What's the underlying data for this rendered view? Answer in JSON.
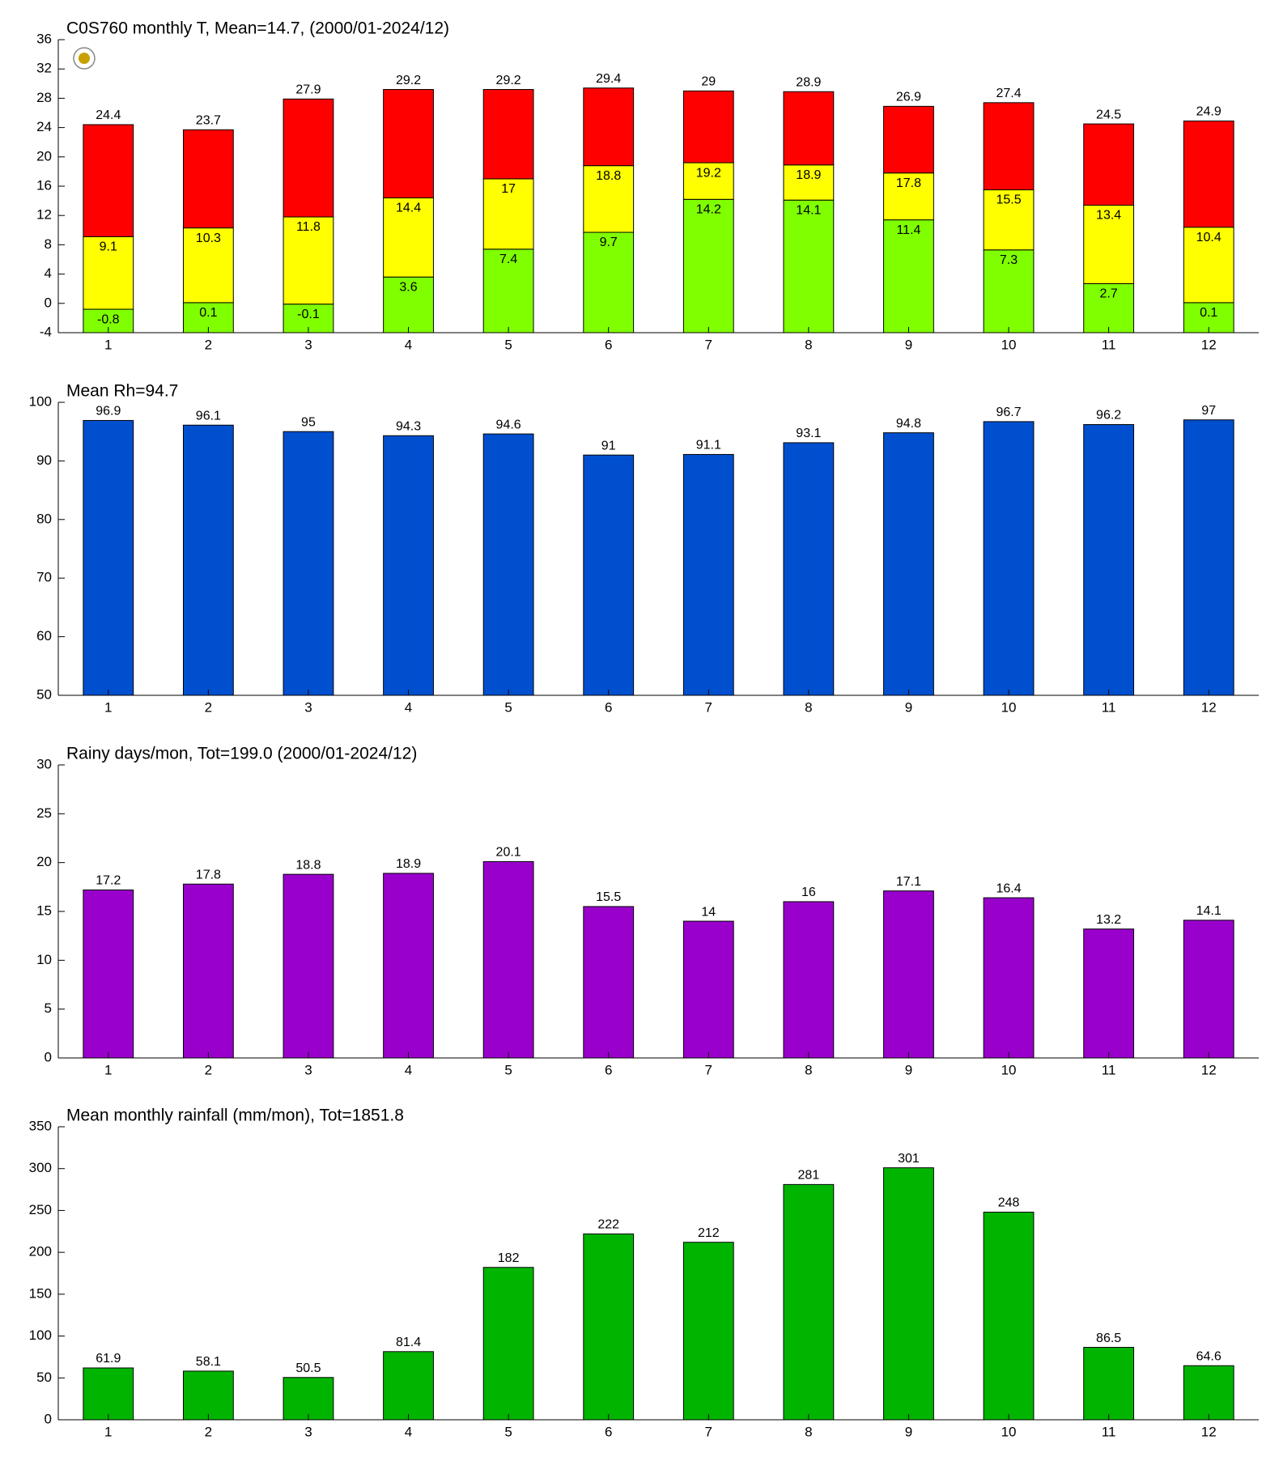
{
  "chart_data": [
    {
      "type": "bar",
      "title": "C0S760 monthly T, Mean=14.7, (2000/01-2024/12)",
      "categories": [
        "1",
        "2",
        "3",
        "4",
        "5",
        "6",
        "7",
        "8",
        "9",
        "10",
        "11",
        "12"
      ],
      "series": [
        {
          "color": "#80ff00",
          "values": [
            -0.8,
            0.1,
            -0.1,
            3.6,
            7.4,
            9.7,
            14.2,
            14.1,
            11.4,
            7.3,
            2.7,
            0.1
          ]
        },
        {
          "color": "#ffff00",
          "values": [
            9.1,
            10.3,
            11.8,
            14.4,
            17,
            18.8,
            19.2,
            18.9,
            17.8,
            15.5,
            13.4,
            10.4
          ]
        },
        {
          "color": "#ff0000",
          "values": [
            24.4,
            23.7,
            27.9,
            29.2,
            29.2,
            29.4,
            29,
            28.9,
            26.9,
            27.4,
            24.5,
            24.9
          ]
        }
      ],
      "ylim": [
        -4,
        36
      ],
      "yticks": [
        -4,
        0,
        4,
        8,
        12,
        16,
        20,
        24,
        28,
        32,
        36
      ]
    },
    {
      "type": "bar",
      "title": "Mean Rh=94.7",
      "categories": [
        "1",
        "2",
        "3",
        "4",
        "5",
        "6",
        "7",
        "8",
        "9",
        "10",
        "11",
        "12"
      ],
      "values": [
        96.9,
        96.1,
        95,
        94.3,
        94.6,
        91,
        91.1,
        93.1,
        94.8,
        96.7,
        96.2,
        97
      ],
      "color": "#004fcf",
      "ylim": [
        50,
        100
      ],
      "yticks": [
        50,
        60,
        70,
        80,
        90,
        100
      ]
    },
    {
      "type": "bar",
      "title": "Rainy days/mon, Tot=199.0 (2000/01-2024/12)",
      "categories": [
        "1",
        "2",
        "3",
        "4",
        "5",
        "6",
        "7",
        "8",
        "9",
        "10",
        "11",
        "12"
      ],
      "values": [
        17.2,
        17.8,
        18.8,
        18.9,
        20.1,
        15.5,
        14,
        16,
        17.1,
        16.4,
        13.2,
        14.1
      ],
      "color": "#9900cc",
      "ylim": [
        0,
        30
      ],
      "yticks": [
        0,
        5,
        10,
        15,
        20,
        25,
        30
      ]
    },
    {
      "type": "bar",
      "title": "Mean monthly rainfall (mm/mon), Tot=1851.8",
      "categories": [
        "1",
        "2",
        "3",
        "4",
        "5",
        "6",
        "7",
        "8",
        "9",
        "10",
        "11",
        "12"
      ],
      "values": [
        61.9,
        58.1,
        50.5,
        81.4,
        182,
        222,
        212,
        281,
        301,
        248,
        86.5,
        64.6
      ],
      "color": "#00b400",
      "ylim": [
        0,
        350
      ],
      "yticks": [
        0,
        50,
        100,
        150,
        200,
        250,
        300,
        350
      ]
    }
  ]
}
